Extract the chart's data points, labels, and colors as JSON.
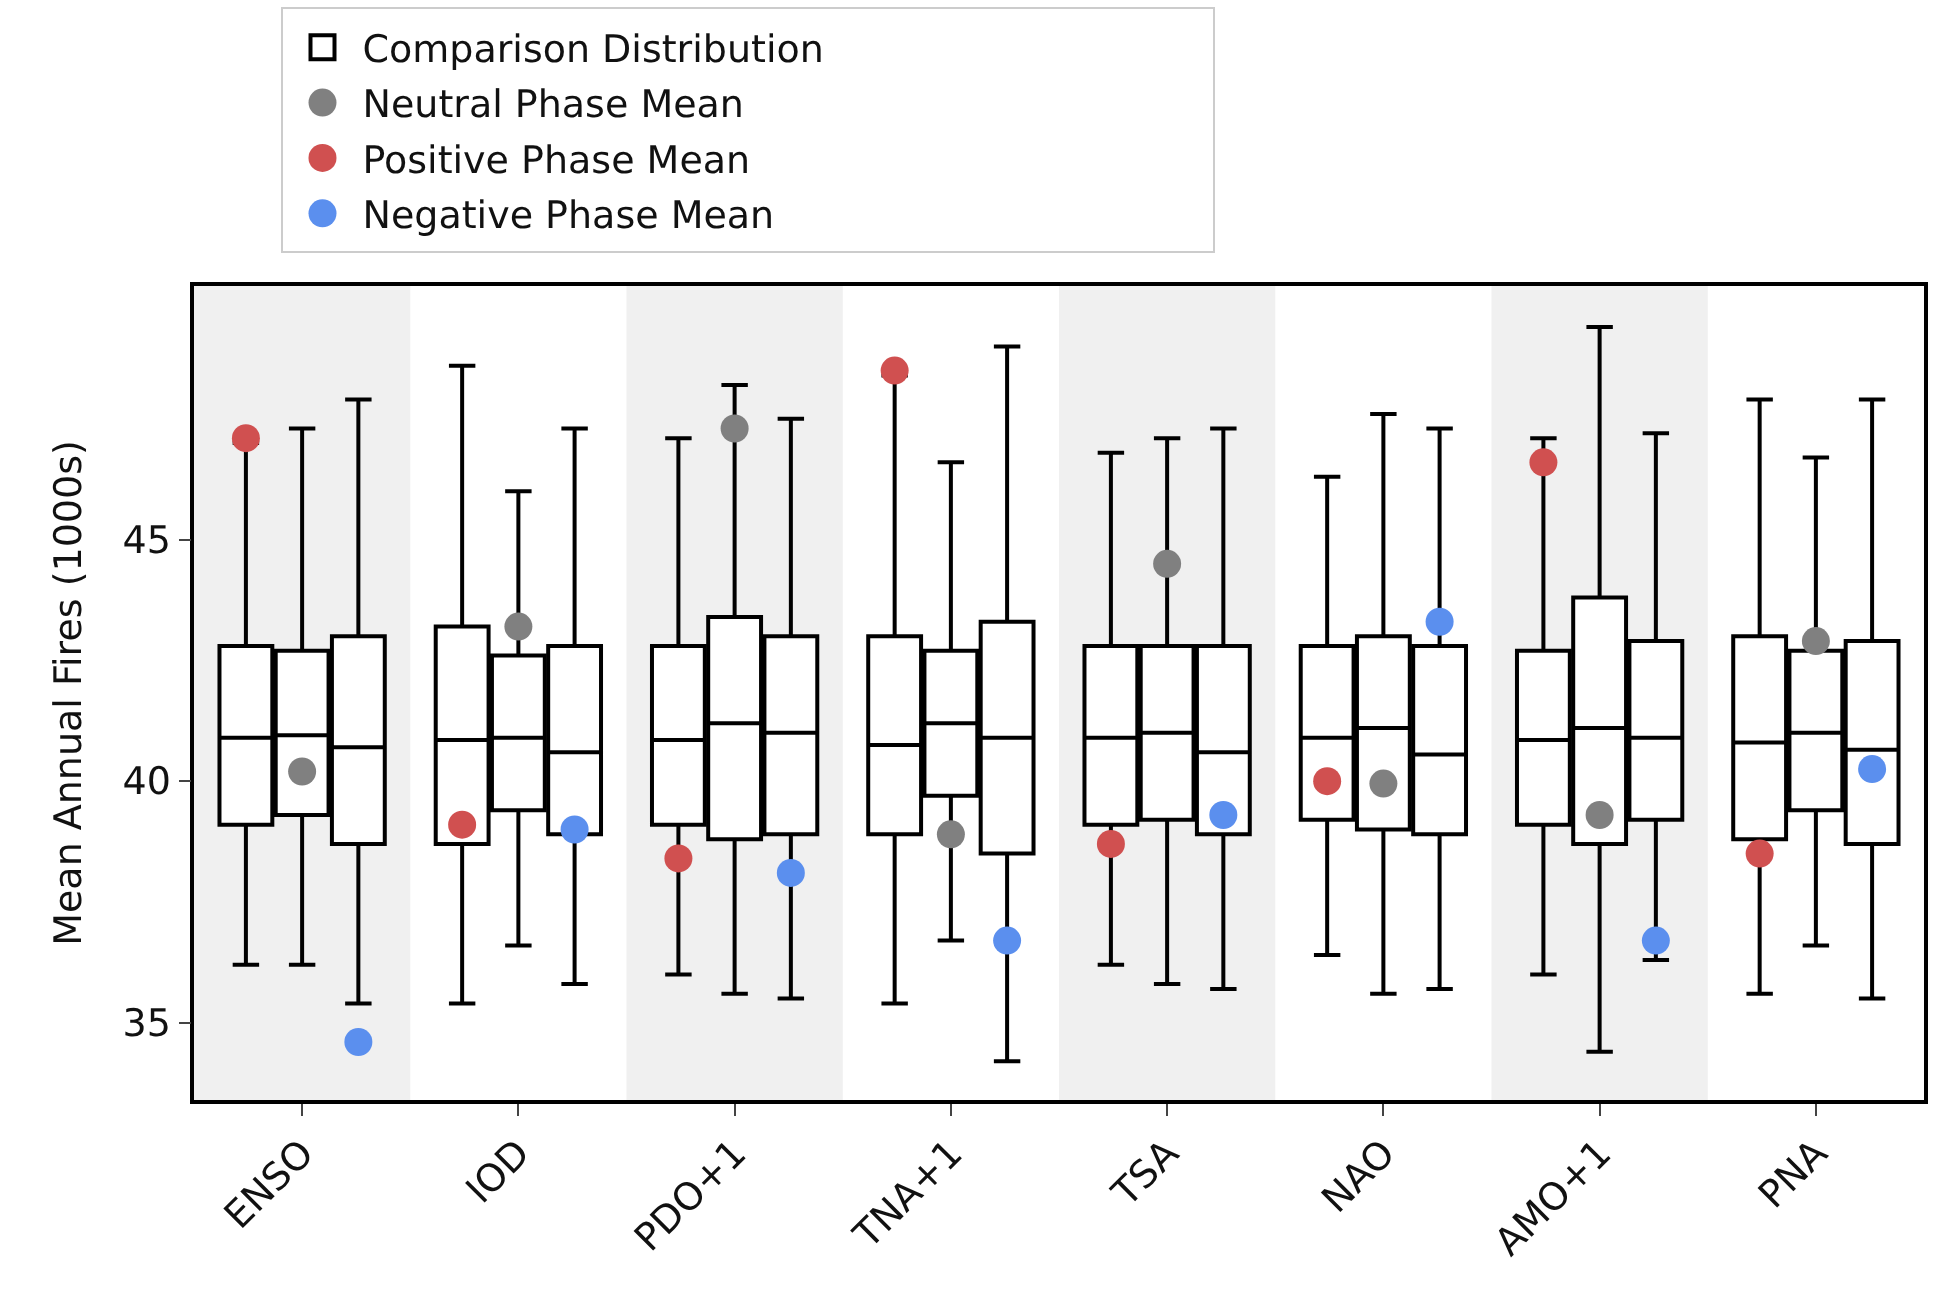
{
  "chart_data": {
    "type": "box",
    "ylabel": "Mean Annual Fires (1000s)",
    "categories": [
      "ENSO",
      "IOD",
      "PDO+1",
      "TNA+1",
      "TSA",
      "NAO",
      "AMO+1",
      "PNA"
    ],
    "ylim": [
      33.4,
      50.25
    ],
    "yticks": [
      35,
      40,
      45
    ],
    "grid": false,
    "legend": "top",
    "bands": [
      {
        "axis": "x",
        "from": "ENSO",
        "to": "ENSO",
        "color": "#f0f0f0"
      },
      {
        "axis": "x",
        "from": "PDO+1",
        "to": "PDO+1",
        "color": "#f0f0f0"
      },
      {
        "axis": "x",
        "from": "TSA",
        "to": "TSA",
        "color": "#f0f0f0"
      },
      {
        "axis": "x",
        "from": "AMO+1",
        "to": "AMO+1",
        "color": "#f0f0f0"
      }
    ],
    "series": [
      {
        "name": "Comparison Distribution",
        "color": "#000000",
        "boxes": [
          {
            "low": 36.2,
            "q1": 39.1,
            "median": 40.9,
            "q3": 42.8,
            "high": 47.0
          },
          {
            "low": 35.4,
            "q1": 38.7,
            "median": 40.85,
            "q3": 43.2,
            "high": 48.6
          },
          {
            "low": 36.0,
            "q1": 39.1,
            "median": 40.85,
            "q3": 42.8,
            "high": 47.1
          },
          {
            "low": 35.4,
            "q1": 38.9,
            "median": 40.75,
            "q3": 43.0,
            "high": 48.4
          },
          {
            "low": 36.2,
            "q1": 39.1,
            "median": 40.9,
            "q3": 42.8,
            "high": 46.8
          },
          {
            "low": 36.4,
            "q1": 39.2,
            "median": 40.9,
            "q3": 42.8,
            "high": 46.3
          },
          {
            "low": 36.0,
            "q1": 39.1,
            "median": 40.85,
            "q3": 42.7,
            "high": 47.1
          },
          {
            "low": 35.6,
            "q1": 38.8,
            "median": 40.8,
            "q3": 43.0,
            "high": 47.9
          }
        ]
      },
      {
        "color": "#000000",
        "boxes": [
          {
            "low": 36.2,
            "q1": 39.3,
            "median": 40.95,
            "q3": 42.7,
            "high": 47.3
          },
          {
            "low": 36.6,
            "q1": 39.4,
            "median": 40.9,
            "q3": 42.6,
            "high": 46.0
          },
          {
            "low": 35.6,
            "q1": 38.8,
            "median": 41.2,
            "q3": 43.4,
            "high": 48.2
          },
          {
            "low": 36.7,
            "q1": 39.7,
            "median": 41.2,
            "q3": 42.7,
            "high": 46.6
          },
          {
            "low": 35.8,
            "q1": 39.2,
            "median": 41.0,
            "q3": 42.8,
            "high": 47.1
          },
          {
            "low": 35.6,
            "q1": 39.0,
            "median": 41.1,
            "q3": 43.0,
            "high": 47.6
          },
          {
            "low": 34.4,
            "q1": 38.7,
            "median": 41.1,
            "q3": 43.8,
            "high": 49.4
          },
          {
            "low": 36.6,
            "q1": 39.4,
            "median": 41.0,
            "q3": 42.7,
            "high": 46.7
          }
        ]
      },
      {
        "color": "#000000",
        "boxes": [
          {
            "low": 35.4,
            "q1": 38.7,
            "median": 40.7,
            "q3": 43.0,
            "high": 47.9
          },
          {
            "low": 35.8,
            "q1": 38.9,
            "median": 40.6,
            "q3": 42.8,
            "high": 47.3
          },
          {
            "low": 35.5,
            "q1": 38.9,
            "median": 41.0,
            "q3": 43.0,
            "high": 47.5
          },
          {
            "low": 34.2,
            "q1": 38.5,
            "median": 40.9,
            "q3": 43.3,
            "high": 49.0
          },
          {
            "low": 35.7,
            "q1": 38.9,
            "median": 40.6,
            "q3": 42.8,
            "high": 47.3
          },
          {
            "low": 35.7,
            "q1": 38.9,
            "median": 40.55,
            "q3": 42.8,
            "high": 47.3
          },
          {
            "low": 36.3,
            "q1": 39.2,
            "median": 40.9,
            "q3": 42.9,
            "high": 47.2
          },
          {
            "low": 35.5,
            "q1": 38.7,
            "median": 40.65,
            "q3": 42.9,
            "high": 47.9
          }
        ]
      },
      {
        "type": "scatter",
        "name": "Positive Phase Mean",
        "color": "#d05050",
        "marker": "circle",
        "values": [
          47.1,
          39.1,
          38.4,
          48.5,
          38.7,
          40.0,
          46.6,
          38.5
        ]
      },
      {
        "type": "scatter",
        "name": "Neutral Phase Mean",
        "color": "#808080",
        "marker": "circle",
        "values": [
          40.2,
          43.2,
          47.3,
          38.9,
          44.5,
          39.95,
          39.3,
          42.9
        ]
      },
      {
        "type": "scatter",
        "name": "Negative Phase Mean",
        "color": "#5b8fee",
        "marker": "circle",
        "values": [
          34.6,
          39.0,
          38.1,
          36.7,
          39.3,
          43.3,
          36.7,
          40.25
        ]
      }
    ]
  }
}
